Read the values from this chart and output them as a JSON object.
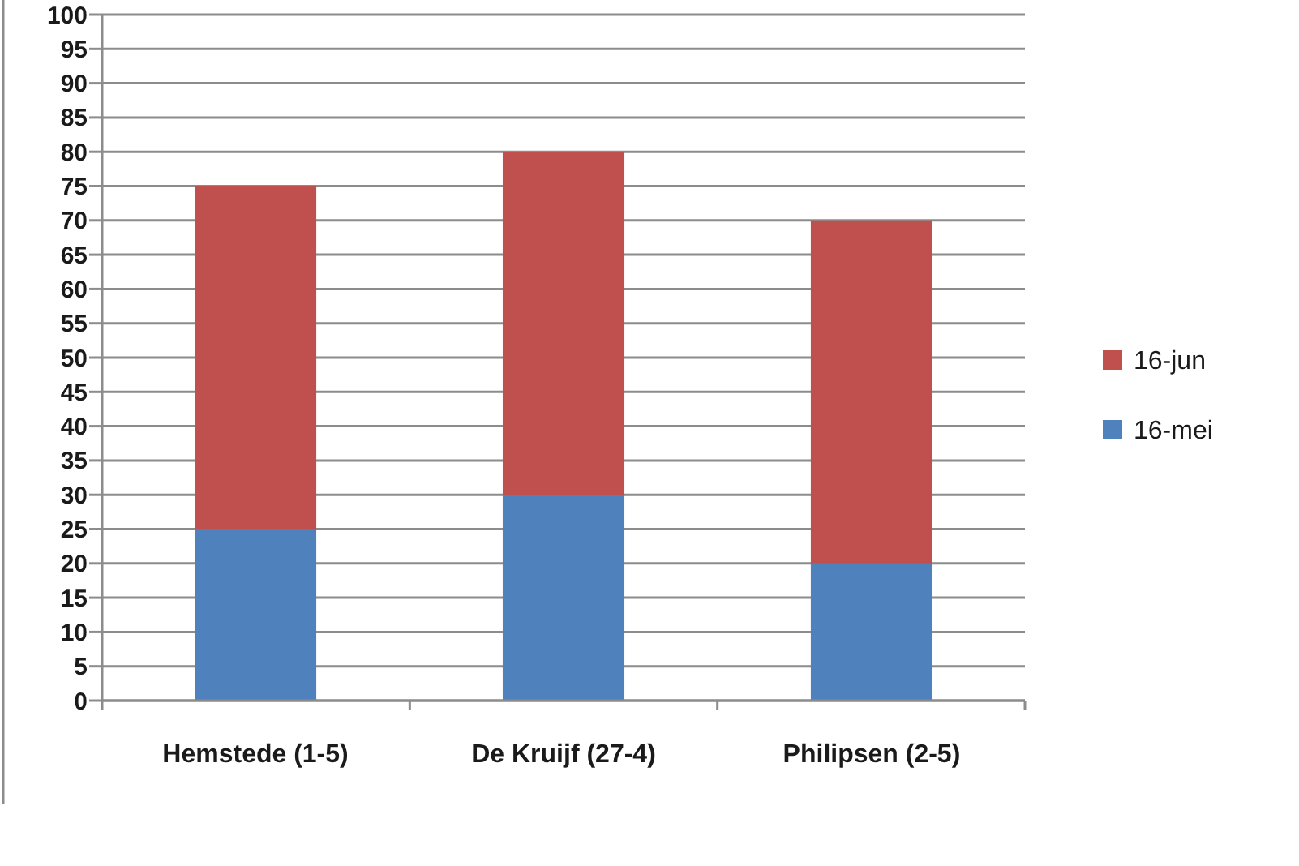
{
  "chart_data": {
    "type": "bar",
    "stacked": true,
    "categories": [
      "Hemstede (1-5)",
      "De Kruijf (27-4)",
      "Philipsen (2-5)"
    ],
    "series": [
      {
        "name": "16-mei",
        "color": "#4f81bd",
        "values": [
          25,
          30,
          20
        ]
      },
      {
        "name": "16-jun",
        "color": "#c0504d",
        "values": [
          50,
          50,
          50
        ]
      }
    ],
    "ylim": [
      0,
      100
    ],
    "yticks": [
      0,
      5,
      10,
      15,
      20,
      25,
      30,
      35,
      40,
      45,
      50,
      55,
      60,
      65,
      70,
      75,
      80,
      85,
      90,
      95,
      100
    ],
    "grid": "y",
    "legend": "right"
  }
}
